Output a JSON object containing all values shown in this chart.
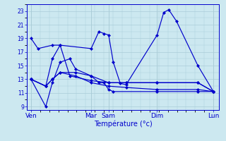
{
  "background_color": "#cce8f0",
  "grid_color": "#aaccd8",
  "line_color": "#0000cc",
  "xlabel": "Température (°c)",
  "yticks": [
    9,
    11,
    13,
    15,
    17,
    19,
    21,
    23
  ],
  "ylim": [
    8.5,
    24.0
  ],
  "series": {
    "s1": {
      "x": [
        0.0,
        0.18,
        0.55,
        0.75,
        1.55,
        1.75,
        1.88,
        2.0,
        2.12,
        2.3,
        2.45,
        3.25,
        3.42,
        3.55,
        3.75,
        4.3,
        4.7
      ],
      "y": [
        19.0,
        17.5,
        18.0,
        18.0,
        17.5,
        20.0,
        19.7,
        19.5,
        15.5,
        12.4,
        12.2,
        19.5,
        22.8,
        23.2,
        21.5,
        15.0,
        11.2
      ]
    },
    "s2": {
      "x": [
        0.0,
        0.38,
        0.55,
        0.75,
        1.0,
        1.15,
        1.55,
        1.75,
        1.88,
        2.0,
        2.12,
        3.25,
        4.3,
        4.7
      ],
      "y": [
        13.0,
        9.0,
        12.5,
        15.5,
        16.0,
        14.5,
        13.5,
        12.5,
        12.5,
        11.5,
        11.2,
        11.2,
        11.2,
        11.2
      ]
    },
    "s3": {
      "x": [
        0.0,
        0.38,
        0.55,
        0.75,
        1.0,
        1.55,
        2.0,
        2.45,
        3.25,
        4.3,
        4.7
      ],
      "y": [
        13.0,
        12.0,
        16.0,
        18.0,
        13.5,
        12.8,
        12.5,
        12.5,
        12.5,
        12.5,
        11.2
      ]
    },
    "s4": {
      "x": [
        0.0,
        0.38,
        0.55,
        0.75,
        1.15,
        1.55,
        2.0,
        2.45,
        3.25,
        4.3,
        4.7
      ],
      "y": [
        13.0,
        12.0,
        13.0,
        14.0,
        14.0,
        13.5,
        12.5,
        12.5,
        12.5,
        12.5,
        11.2
      ]
    },
    "s5": {
      "x": [
        0.0,
        0.38,
        0.55,
        0.75,
        1.15,
        1.55,
        2.0,
        2.45,
        3.25,
        4.3,
        4.7
      ],
      "y": [
        13.0,
        12.0,
        13.0,
        14.0,
        13.5,
        12.5,
        12.0,
        11.8,
        11.5,
        11.5,
        11.2
      ]
    }
  },
  "day_ticks": {
    "positions": [
      0.0,
      1.55,
      2.0,
      3.25,
      4.7
    ],
    "labels": [
      "Ven",
      "Mar",
      "Sam",
      "Dim",
      "Lun"
    ]
  },
  "xlim": [
    -0.1,
    4.85
  ]
}
